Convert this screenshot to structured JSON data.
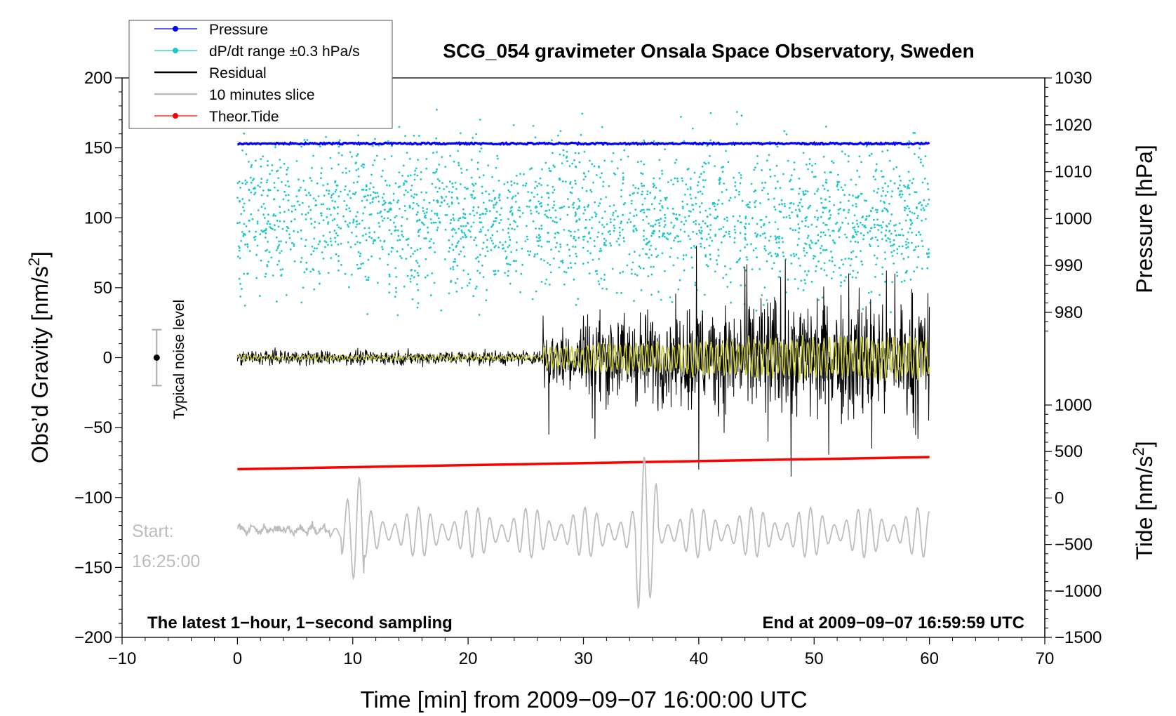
{
  "chart_data": {
    "type": "line",
    "title": "SCG_054 gravimeter Onsala Space Observatory, Sweden",
    "xlabel": "Time [min] from 2009−09−07 16:00:00 UTC",
    "ylabel_main": "Obs’d Gravity [nm/s",
    "ylabel_main_sup": "2",
    "ylabel_main_end": "]",
    "ylabel_pressure": "Pressure [hPa]",
    "ylabel_tide": "Tide [nm/s",
    "ylabel_tide_sup": "2",
    "ylabel_tide_end": "]",
    "xlim": [
      -10,
      70
    ],
    "ylim": [
      -200,
      200
    ],
    "x_ticks": [
      "−10",
      "0",
      "10",
      "20",
      "30",
      "40",
      "50",
      "60",
      "70"
    ],
    "x_tick_values": [
      -10,
      0,
      10,
      20,
      30,
      40,
      50,
      60,
      70
    ],
    "y_ticks": [
      "−200",
      "−150",
      "−100",
      "−50",
      "0",
      "50",
      "100",
      "150",
      "200"
    ],
    "y_tick_values": [
      -200,
      -150,
      -100,
      -50,
      0,
      50,
      100,
      150,
      200
    ],
    "pressure_axis": {
      "range": [
        970,
        1030
      ],
      "ticks": [
        "980",
        "990",
        "1000",
        "1010",
        "1020",
        "1030"
      ],
      "tick_values": [
        980,
        990,
        1000,
        1010,
        1020,
        1030
      ]
    },
    "tide_axis": {
      "range": [
        -1500,
        1000
      ],
      "ticks": [
        "−1500",
        "−1000",
        "−500",
        "0",
        "500",
        "1000"
      ],
      "tick_values": [
        -1500,
        -1000,
        -500,
        0,
        500,
        1000
      ]
    },
    "legend": {
      "position": "top-left",
      "entries": [
        {
          "label": "Pressure",
          "color": "#0000ff",
          "marker": "dot-line"
        },
        {
          "label": "dP/dt range ±0.3 hPa/s",
          "color": "#1ec8c8",
          "marker": "dot-line"
        },
        {
          "label": "Residual",
          "color": "#000000",
          "marker": "line"
        },
        {
          "label": "10 minutes slice",
          "color": "#bdbdbd",
          "marker": "line"
        },
        {
          "label": "Theor.Tide",
          "color": "#ff0000",
          "marker": "dot-line"
        }
      ]
    },
    "series": [
      {
        "name": "Pressure",
        "axis": "pressure",
        "color": "#0000ff",
        "x": [
          0,
          60
        ],
        "values": [
          1016,
          1016
        ]
      },
      {
        "name": "Theor.Tide",
        "axis": "tide",
        "color": "#ff0000",
        "x": [
          0,
          60
        ],
        "values": [
          310,
          440
        ]
      },
      {
        "name": "Residual",
        "axis": "gravity",
        "color": "#000000",
        "x": [
          0,
          26.5,
          27,
          30,
          31,
          33,
          36,
          39.8,
          40,
          44,
          46,
          47.5,
          48,
          53,
          55,
          57,
          59,
          60
        ],
        "values": [
          0,
          30,
          -55,
          30,
          -58,
          25,
          25,
          80,
          -80,
          65,
          -60,
          70,
          -85,
          60,
          -65,
          60,
          -58,
          0
        ]
      },
      {
        "name": "10 minutes slice",
        "axis": "gravity",
        "color": "#bdbdbd",
        "x": [
          0,
          7,
          9,
          10,
          12,
          15,
          20,
          25,
          32,
          35.3,
          35.8,
          38,
          45,
          50,
          55,
          58,
          60
        ],
        "values": [
          -122,
          -125,
          -85,
          -178,
          -110,
          -150,
          -115,
          -145,
          -110,
          -57,
          -182,
          -95,
          -110,
          -130,
          -95,
          -148,
          -116
        ]
      },
      {
        "name": "dP/dt range ±0.3 hPa/s",
        "axis": "gravity",
        "color": "#1ec8c8",
        "description_range": [
          0,
          200
        ],
        "x": [
          0,
          60
        ]
      }
    ],
    "annotations": {
      "noise_label": "Typical noise level",
      "noise_bar": {
        "x": -7,
        "center": 0,
        "half_range": 20
      },
      "slice_start_line1": "Start:",
      "slice_start_line2": "16:25:00",
      "bottom_left_note": "The latest 1−hour, 1−second sampling",
      "bottom_right_note": "End at 2009−09−07 16:59:59 UTC"
    }
  }
}
